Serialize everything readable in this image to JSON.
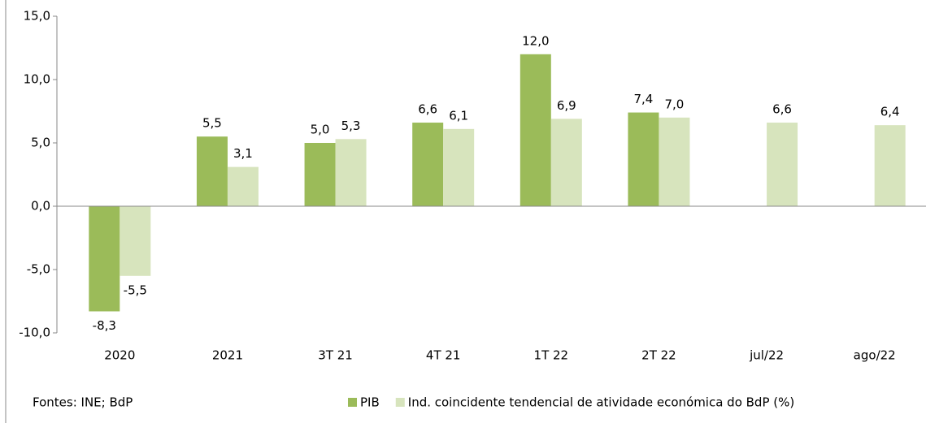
{
  "chart_data": {
    "type": "bar",
    "categories": [
      "2020",
      "2021",
      "3T 21",
      "4T 21",
      "1T 22",
      "2T 22",
      "jul/22",
      "ago/22"
    ],
    "series": [
      {
        "name": "PIB",
        "color": "#9bbb59",
        "values": [
          -8.3,
          5.5,
          5.0,
          6.6,
          12.0,
          7.4,
          null,
          null
        ],
        "value_labels": [
          "-8,3",
          "5,5",
          "5,0",
          "6,6",
          "12,0",
          "7,4",
          null,
          null
        ]
      },
      {
        "name": "Ind. coincidente tendencial de atividade económica do BdP (%)",
        "color": "#d7e4bd",
        "values": [
          -5.5,
          3.1,
          5.3,
          6.1,
          6.9,
          7.0,
          6.6,
          6.4
        ],
        "value_labels": [
          "-5,5",
          "3,1",
          "5,3",
          "6,1",
          "6,9",
          "7,0",
          "6,6",
          "6,4"
        ]
      }
    ],
    "ylim": [
      -10,
      15
    ],
    "yticks": [
      {
        "value": -10,
        "label": "-10,0"
      },
      {
        "value": -5,
        "label": "-5,0"
      },
      {
        "value": 0,
        "label": "0,0"
      },
      {
        "value": 5,
        "label": "5,0"
      },
      {
        "value": 10,
        "label": "10,0"
      },
      {
        "value": 15,
        "label": "15,0"
      }
    ],
    "grid": false,
    "legend": "bottom",
    "source": "Fontes:  INE; BdP"
  }
}
